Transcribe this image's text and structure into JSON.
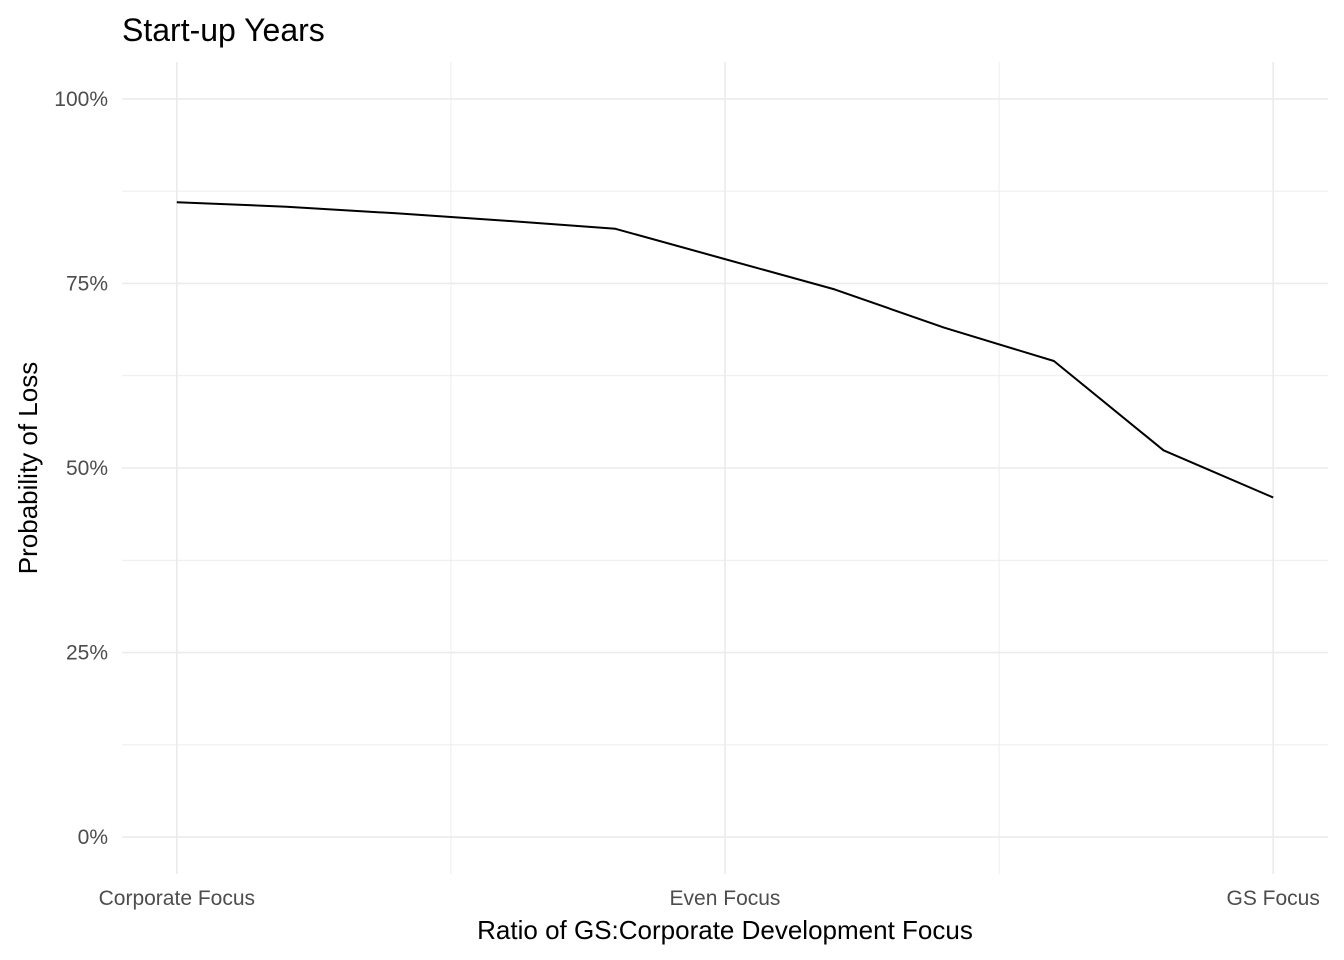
{
  "chart_data": {
    "type": "line",
    "title": "Start-up Years",
    "xlabel": "Ratio of GS:Corporate Development Focus",
    "ylabel": "Probability of Loss",
    "x_tick_labels": [
      "Corporate Focus",
      "Even Focus",
      "GS Focus"
    ],
    "x_tick_positions": [
      0,
      0.5,
      1
    ],
    "y_tick_labels": [
      "0%",
      "25%",
      "50%",
      "75%",
      "100%"
    ],
    "y_tick_values": [
      0,
      0.25,
      0.5,
      0.75,
      1.0
    ],
    "xlim": [
      -0.05,
      1.05
    ],
    "ylim": [
      -0.05,
      1.05
    ],
    "grid": true,
    "legend": "none",
    "series": [
      {
        "color": "#000000",
        "x": [
          0,
          0.1,
          0.2,
          0.3,
          0.4,
          0.5,
          0.6,
          0.7,
          0.8,
          0.9,
          1.0
        ],
        "y": [
          0.86,
          0.854,
          0.845,
          0.835,
          0.824,
          0.783,
          0.742,
          0.69,
          0.645,
          0.524,
          0.46
        ]
      }
    ]
  }
}
